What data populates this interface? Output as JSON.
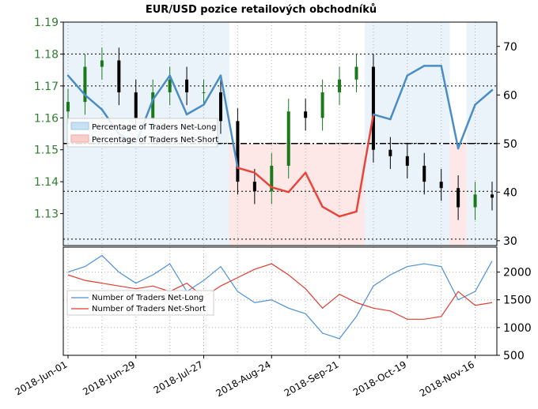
{
  "chart_data": [
    {
      "type": "candlestick+line",
      "title": "EUR/USD pozice retailových obchodníků",
      "left_axis": {
        "ticks": [
          "1.13",
          "1.14",
          "1.15",
          "1.16",
          "1.17",
          "1.18",
          "1.19"
        ],
        "range": [
          1.12,
          1.19
        ],
        "color": "#2e7d32"
      },
      "right_axis": {
        "ticks": [
          "30",
          "40",
          "50",
          "60",
          "70"
        ],
        "range": [
          29,
          75
        ]
      },
      "grid": true,
      "legend": {
        "placement": "left",
        "entries": [
          {
            "label": "Percentage of Traders Net-Long",
            "color": "#9ec9ea"
          },
          {
            "label": "Percentage of Traders Net-Short",
            "color": "#f4a7a0"
          }
        ]
      },
      "reference_lines": {
        "price": [
          1.137,
          1.152,
          1.17,
          1.18,
          1.122
        ],
        "percent_dashdot": 50
      },
      "x_dates": [
        "2018-06-01",
        "2018-06-08",
        "2018-06-15",
        "2018-06-22",
        "2018-06-29",
        "2018-07-06",
        "2018-07-13",
        "2018-07-20",
        "2018-07-27",
        "2018-08-03",
        "2018-08-10",
        "2018-08-17",
        "2018-08-24",
        "2018-08-31",
        "2018-09-07",
        "2018-09-14",
        "2018-09-21",
        "2018-09-28",
        "2018-10-05",
        "2018-10-12",
        "2018-10-19",
        "2018-10-26",
        "2018-11-02",
        "2018-11-09",
        "2018-11-16",
        "2018-11-23"
      ],
      "price_close": [
        1.165,
        1.176,
        1.178,
        1.168,
        1.16,
        1.168,
        1.172,
        1.168,
        1.168,
        1.159,
        1.14,
        1.137,
        1.145,
        1.162,
        1.16,
        1.168,
        1.172,
        1.176,
        1.15,
        1.148,
        1.145,
        1.14,
        1.138,
        1.132,
        1.136,
        1.135
      ],
      "percent_net_long": [
        64,
        60,
        57,
        52,
        50,
        59,
        64,
        56,
        58,
        64,
        45,
        44,
        41,
        40,
        44,
        37,
        35,
        36,
        56,
        55,
        64,
        66,
        66,
        49,
        58,
        61
      ]
    },
    {
      "type": "line",
      "right_axis": {
        "ticks": [
          "500",
          "1000",
          "1500",
          "2000"
        ],
        "range": [
          500,
          2450
        ]
      },
      "legend": {
        "placement": "left",
        "entries": [
          {
            "label": "Number of Traders Net-Long",
            "color": "#4a90d9"
          },
          {
            "label": "Number of Traders Net-Short",
            "color": "#e23b2e"
          }
        ]
      },
      "x_ticks": [
        "2018-Jun-01",
        "2018-Jun-29",
        "2018-Jul-27",
        "2018-Aug-24",
        "2018-Sep-21",
        "2018-Oct-19",
        "2018-Nov-16"
      ],
      "series": [
        {
          "name": "Number of Traders Net-Long",
          "values": [
            2000,
            2100,
            2300,
            2000,
            1800,
            1950,
            2150,
            1650,
            1850,
            2100,
            1650,
            1450,
            1500,
            1350,
            1250,
            900,
            800,
            1200,
            1750,
            1950,
            2100,
            2150,
            2100,
            1500,
            1650,
            2200
          ]
        },
        {
          "name": "Number of Traders Net-Short",
          "values": [
            1950,
            1850,
            1800,
            1750,
            1700,
            1750,
            1650,
            1800,
            1550,
            1750,
            1900,
            2050,
            2150,
            1950,
            1700,
            1350,
            1600,
            1450,
            1350,
            1300,
            1150,
            1150,
            1200,
            1650,
            1400,
            1450
          ]
        }
      ]
    }
  ]
}
